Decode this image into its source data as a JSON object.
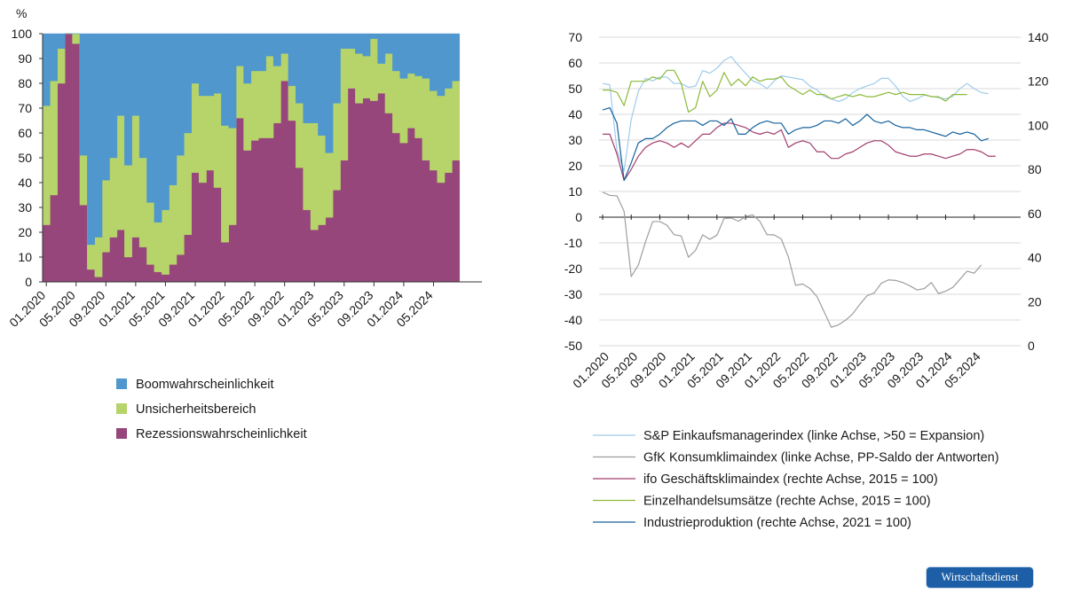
{
  "chart_data": [
    {
      "type": "area",
      "stacked": true,
      "title": "",
      "ylabel": "%",
      "ylim": [
        0,
        100
      ],
      "yticks": [
        0,
        10,
        20,
        30,
        40,
        50,
        60,
        70,
        80,
        90,
        100
      ],
      "x_tick_labels": [
        "01.2020",
        "05.2020",
        "09.2020",
        "01.2021",
        "05.2021",
        "09.2021",
        "01.2022",
        "05.2022",
        "09.2022",
        "01.2023",
        "05.2023",
        "09.2023",
        "01.2024",
        "05.2024"
      ],
      "months": 59,
      "series": [
        {
          "name": "Rezessionswahrscheinlichkeit",
          "color": "#96467a",
          "values": [
            23,
            35,
            80,
            100,
            96,
            31,
            5,
            2,
            12,
            18,
            21,
            10,
            18,
            14,
            7,
            4,
            3,
            7,
            11,
            19,
            44,
            40,
            45,
            38,
            16,
            23,
            66,
            53,
            57,
            58,
            58,
            64,
            81,
            65,
            46,
            29,
            21,
            23,
            26,
            37,
            49,
            78,
            72,
            74,
            73,
            76,
            68,
            60,
            56,
            62,
            58,
            49,
            45,
            40,
            44,
            49
          ]
        },
        {
          "name": "Unsicherheitsbereich",
          "color": "#b6d46a",
          "values": [
            48,
            46,
            14,
            0,
            4,
            20,
            10,
            16,
            29,
            32,
            46,
            37,
            49,
            36,
            25,
            20,
            26,
            32,
            40,
            41,
            36,
            35,
            30,
            38,
            47,
            39,
            21,
            27,
            28,
            27,
            33,
            23,
            11,
            14,
            26,
            35,
            43,
            36,
            26,
            35,
            45,
            16,
            20,
            17,
            25,
            12,
            24,
            25,
            26,
            22,
            25,
            33,
            32,
            35,
            34,
            32
          ]
        },
        {
          "name": "Boomwahrscheinlichkeit",
          "color": "#4f97cd",
          "values": [
            29,
            19,
            6,
            0,
            0,
            49,
            85,
            82,
            59,
            50,
            33,
            53,
            33,
            50,
            68,
            76,
            71,
            61,
            49,
            40,
            20,
            25,
            25,
            24,
            37,
            38,
            13,
            20,
            15,
            15,
            9,
            13,
            8,
            21,
            28,
            36,
            36,
            41,
            48,
            28,
            6,
            6,
            8,
            9,
            2,
            12,
            8,
            15,
            18,
            16,
            17,
            18,
            23,
            25,
            22,
            19
          ]
        }
      ],
      "legend": [
        "Boomwahrscheinlichkeit",
        "Unsicherheitsbereich",
        "Rezessionswahrscheinlichkeit"
      ],
      "legend_placement": "bottom"
    },
    {
      "type": "line",
      "title": "",
      "ylim_left": [
        -50,
        70
      ],
      "yticks_left": [
        -50,
        -40,
        -30,
        -20,
        -10,
        0,
        10,
        20,
        30,
        40,
        50,
        60,
        70
      ],
      "ylim_right": [
        0,
        140
      ],
      "yticks_right": [
        0,
        20,
        40,
        60,
        80,
        100,
        120,
        140
      ],
      "x_tick_labels": [
        "01.2020",
        "05.2020",
        "09.2020",
        "01.2021",
        "05.2021",
        "09.2021",
        "01.2022",
        "05.2022",
        "09.2022",
        "01.2023",
        "05.2023",
        "09.2023",
        "01.2024",
        "05.2024"
      ],
      "months": 59,
      "series": [
        {
          "name": "S&P Einkaufsmanagerindex (linke Achse, >50 = Expansion)",
          "axis": "left",
          "color": "#9fcbe9",
          "values": [
            52,
            51.5,
            26,
            18,
            38,
            49,
            54,
            53,
            54.5,
            54.5,
            52,
            52,
            50.5,
            51,
            57,
            56,
            58,
            61,
            62.5,
            59,
            56,
            53,
            52,
            50,
            53,
            55,
            54.5,
            54,
            53.5,
            51,
            49.5,
            47,
            46,
            45,
            46,
            48.5,
            50,
            51,
            52,
            54,
            54,
            51,
            47,
            45,
            46,
            47.5,
            47,
            46.5,
            46,
            47,
            50,
            52,
            50,
            48.5,
            48
          ]
        },
        {
          "name": "GfK Konsumklimaindex (linke Achse, PP-Saldo der Antworten)",
          "axis": "left",
          "color": "#9e9e9e",
          "values": [
            9.7,
            8.5,
            8.3,
            2.3,
            -23.1,
            -18.6,
            -9.6,
            -1.7,
            -1.7,
            -3.1,
            -6.8,
            -7.3,
            -15.6,
            -12.9,
            -6.9,
            -8.6,
            -7,
            -0.5,
            -0.3,
            -1.6,
            0.2,
            0.9,
            -1.6,
            -6.8,
            -6.9,
            -8.5,
            -15.5,
            -26.5,
            -26,
            -27.7,
            -30.9,
            -36.8,
            -42.8,
            -41.9,
            -40.1,
            -37.6,
            -33.9,
            -30.6,
            -29.5,
            -25.7,
            -24.4,
            -24.6,
            -25.4,
            -26.7,
            -28.3,
            -27.8,
            -25.4,
            -29.7,
            -28.8,
            -27.3,
            -24.2,
            -21,
            -21.8,
            -18.6
          ]
        },
        {
          "name": "ifo Geschäftsklimaindex (rechte Achse, 2015 = 100)",
          "axis": "right",
          "color": "#a23e6e",
          "values": [
            96,
            96,
            87,
            75,
            80,
            86,
            90,
            92,
            93,
            92,
            90,
            92,
            90,
            93,
            96,
            96,
            99,
            101,
            101,
            100,
            99,
            97,
            96,
            97,
            96,
            98,
            90,
            92,
            93,
            92,
            88,
            88,
            85,
            85,
            87,
            88,
            90,
            92,
            93,
            93,
            91,
            88,
            87,
            86,
            86,
            87,
            87,
            86,
            85,
            86,
            87,
            89,
            89,
            88,
            86,
            86
          ]
        },
        {
          "name": "Einzelhandelsumsätze (rechte Achse, 2015 = 100)",
          "axis": "right",
          "color": "#8dba3a",
          "values": [
            116,
            116,
            115,
            109,
            120,
            120,
            120,
            122,
            121,
            125,
            125,
            119,
            106,
            108,
            120,
            113,
            116,
            124,
            118,
            121,
            118,
            122,
            120,
            121,
            121,
            122,
            118,
            116,
            114,
            116,
            114,
            114,
            112,
            113,
            114,
            113,
            114,
            113,
            113,
            114,
            115,
            114,
            115,
            114,
            114,
            114,
            113,
            113,
            111,
            114,
            114,
            114
          ]
        },
        {
          "name": "Industrieproduktion (rechte Achse, 2021 = 100)",
          "axis": "right",
          "color": "#17629d",
          "values": [
            107,
            108,
            101,
            75,
            83,
            92,
            94,
            94,
            96,
            99,
            101,
            102,
            102,
            102,
            100,
            102,
            102,
            100,
            103,
            96,
            96,
            99,
            101,
            102,
            101,
            101,
            96,
            98,
            99,
            99,
            100,
            102,
            102,
            101,
            103,
            100,
            102,
            105,
            102,
            101,
            102,
            100,
            99,
            99,
            98,
            98,
            97,
            96,
            95,
            97,
            96,
            97,
            96,
            93,
            94
          ]
        }
      ],
      "legend_placement": "bottom"
    }
  ],
  "legend_left": {
    "items": [
      {
        "label": "Boomwahrscheinlichkeit",
        "color": "#4f97cd"
      },
      {
        "label": "Unsicherheitsbereich",
        "color": "#b6d46a"
      },
      {
        "label": "Rezessionswahrscheinlichkeit",
        "color": "#96467a"
      }
    ]
  },
  "legend_right": {
    "items": [
      {
        "label": "S&P Einkaufsmanagerindex (linke Achse, >50 = Expansion)",
        "color": "#9fcbe9"
      },
      {
        "label": "GfK Konsumklimaindex (linke Achse, PP-Saldo der Antworten)",
        "color": "#9e9e9e"
      },
      {
        "label": "ifo Geschäftsklimaindex (rechte Achse, 2015 = 100)",
        "color": "#a23e6e"
      },
      {
        "label": "Einzelhandelsumsätze (rechte Achse, 2015 = 100)",
        "color": "#8dba3a"
      },
      {
        "label": "Industrieproduktion (rechte Achse, 2021 = 100)",
        "color": "#17629d"
      }
    ]
  },
  "badge": {
    "label": "Wirtschaftsdienst"
  }
}
